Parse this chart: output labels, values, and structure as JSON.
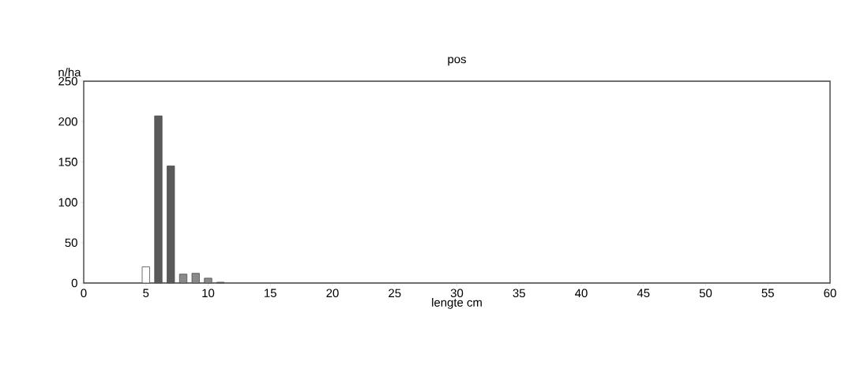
{
  "chart_data": {
    "type": "bar",
    "title": "pos",
    "xlabel": "lengte cm",
    "ylabel": "n/ha",
    "x": [
      5,
      6,
      7,
      8,
      9,
      10,
      11
    ],
    "values": [
      20,
      207,
      145,
      11,
      12,
      6,
      1
    ],
    "colors": [
      "#ffffff",
      "#5a5a5a",
      "#5a5a5a",
      "#8a8a8a",
      "#8a8a8a",
      "#8a8a8a",
      "#5a5a5a"
    ],
    "xlim": [
      0,
      60
    ],
    "xticks": [
      0,
      5,
      10,
      15,
      20,
      25,
      30,
      35,
      40,
      45,
      50,
      55,
      60
    ],
    "ylim": [
      0,
      250
    ],
    "yticks": [
      0,
      50,
      100,
      150,
      200,
      250
    ],
    "grid": false
  }
}
